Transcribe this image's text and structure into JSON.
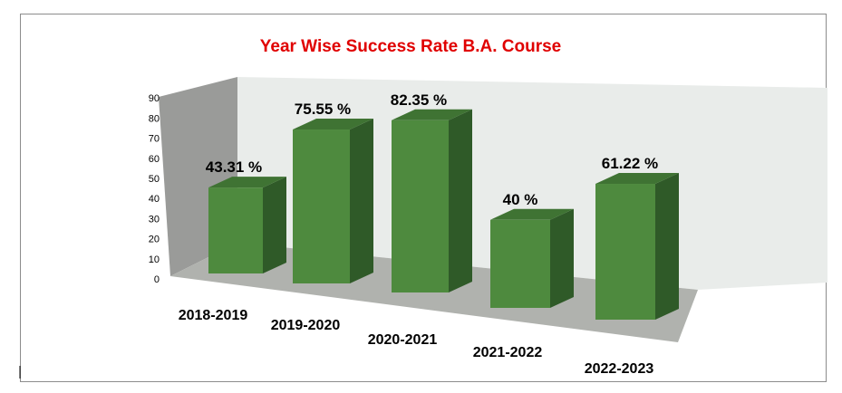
{
  "chart_data": {
    "type": "bar",
    "title": "Year Wise Success Rate B.A. Course",
    "categories": [
      "2018-2019",
      "2019-2020",
      "2020-2021",
      "2021-2022",
      "2022-2023"
    ],
    "values": [
      43.31,
      75.55,
      82.35,
      40,
      61.22
    ],
    "data_labels": [
      "43.31 %",
      "75.55 %",
      "82.35 %",
      "40 %",
      "61.22 %"
    ],
    "ylim": [
      0,
      90
    ],
    "yticks": [
      "0",
      "10",
      "20",
      "30",
      "40",
      "50",
      "60",
      "70",
      "80",
      "90"
    ],
    "xlabel": "",
    "ylabel": "",
    "bar_color": "#4e8a3e",
    "bar_side_color": "#2f5a28",
    "bar_top_color": "#3f7333"
  }
}
